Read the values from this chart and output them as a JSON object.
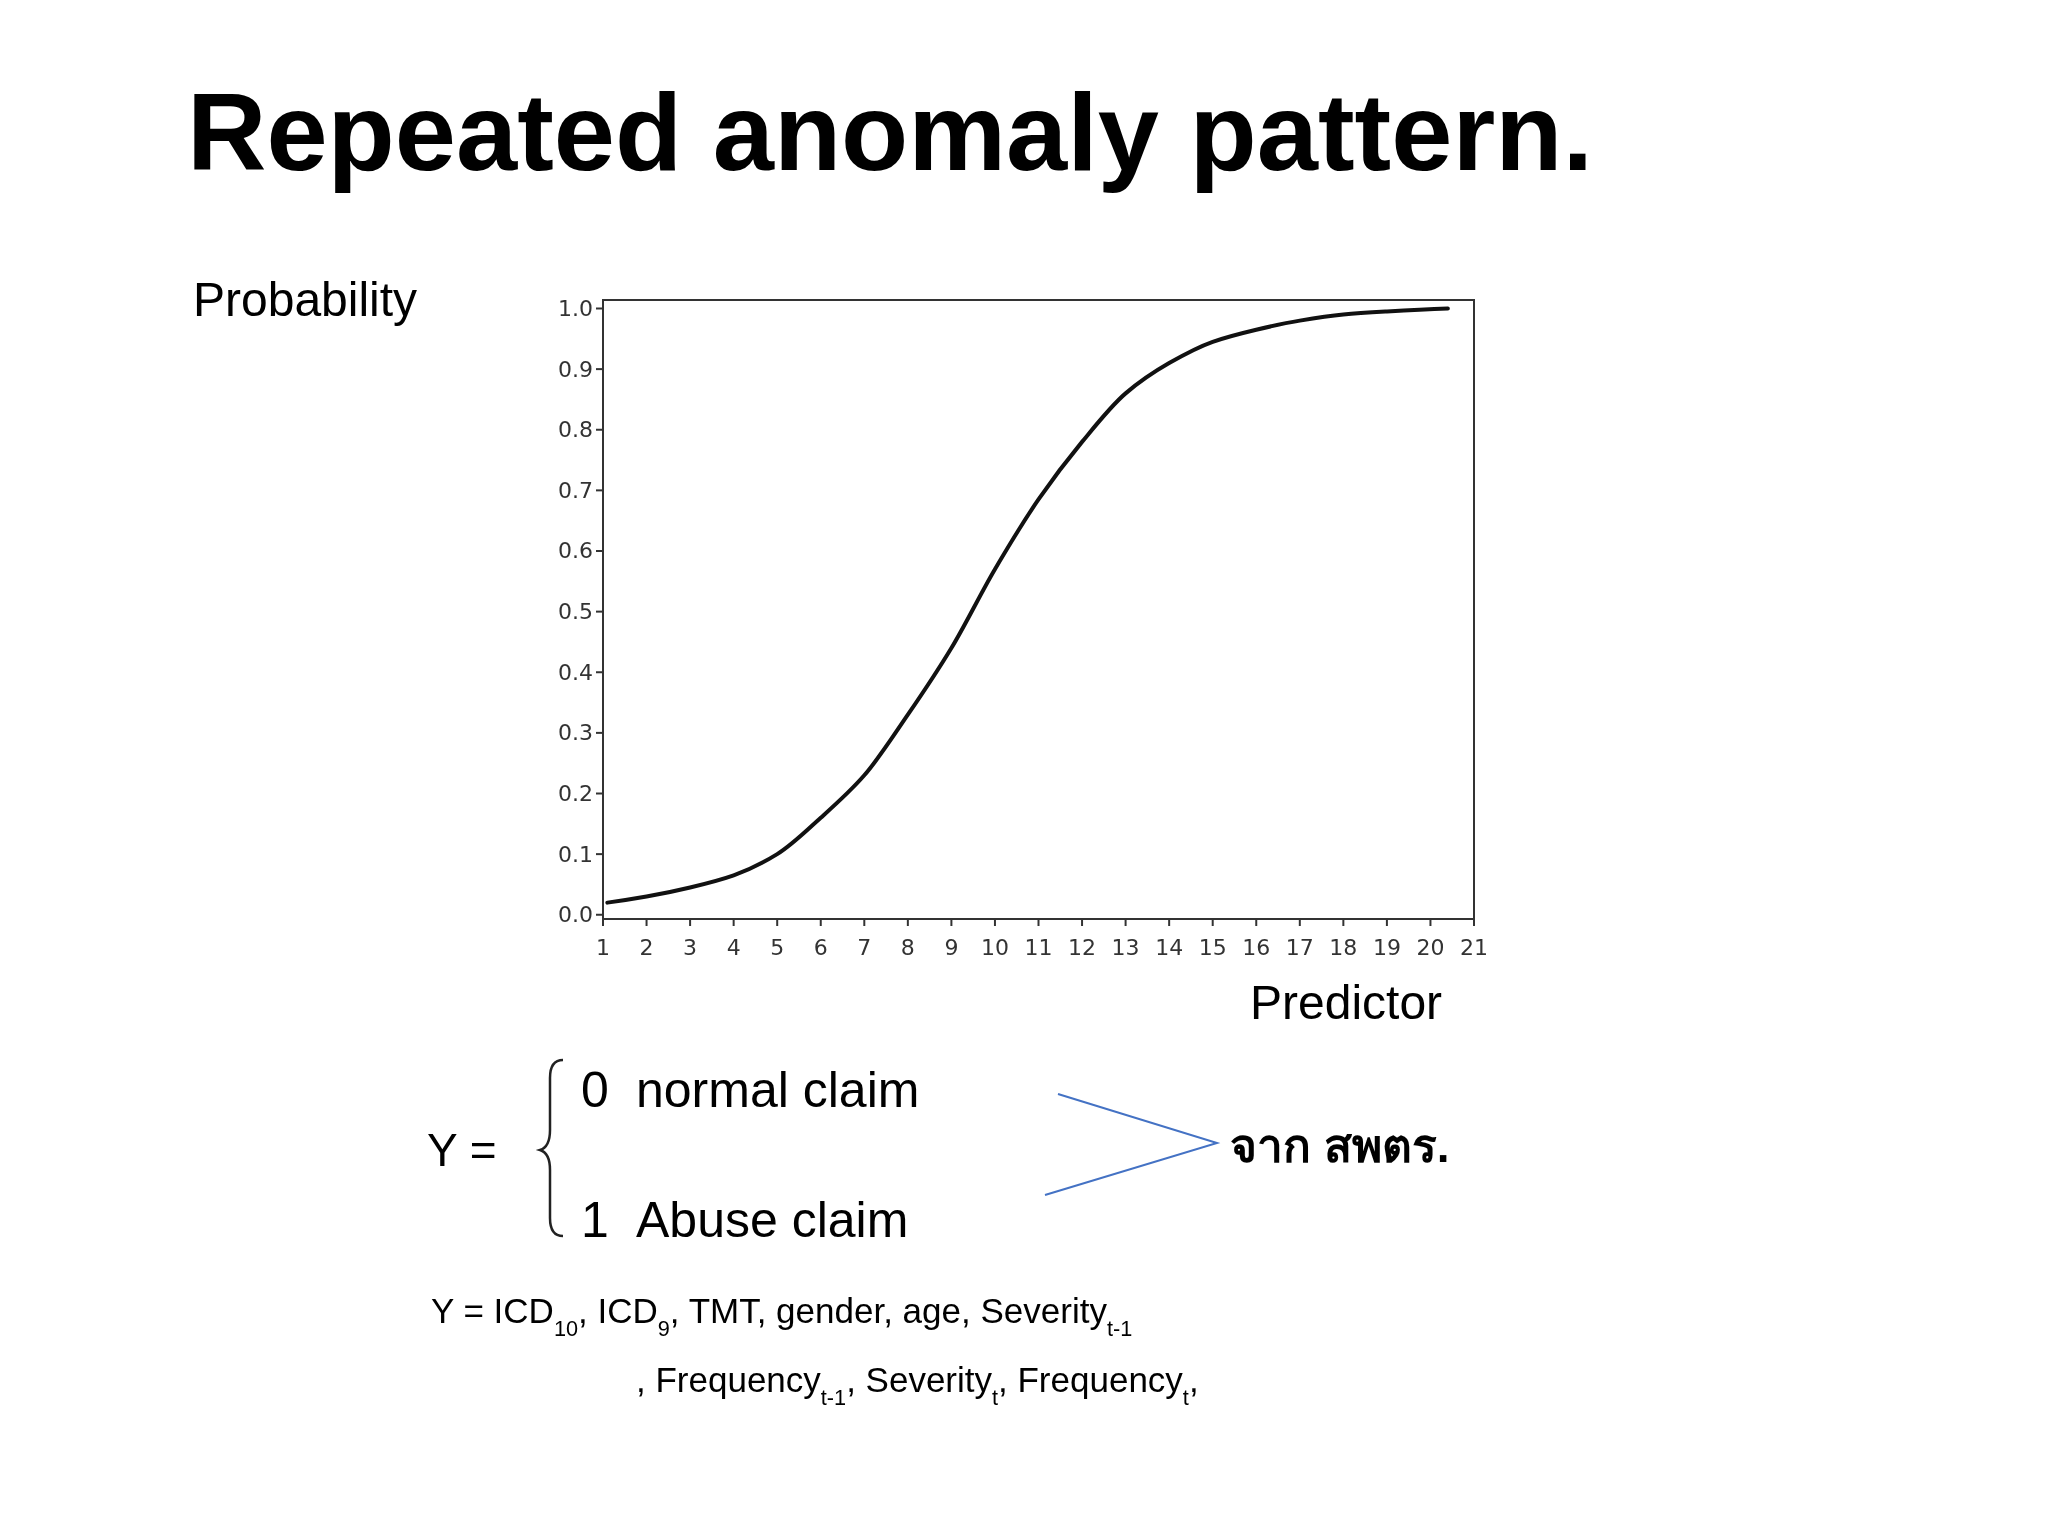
{
  "chart_data": {
    "type": "line",
    "title": "Repeated anomaly pattern.",
    "ylabel": "Probability",
    "xlabel": "Predictor",
    "x": [
      1.1,
      2,
      3,
      4,
      5,
      6,
      7,
      8,
      9,
      10,
      11,
      12,
      13,
      14,
      15,
      16,
      17,
      18,
      19,
      20.4
    ],
    "series": [
      {
        "color": "#111111",
        "values": [
          0.02,
          0.03,
          0.045,
          0.065,
          0.1,
          0.16,
          0.23,
          0.33,
          0.44,
          0.57,
          0.685,
          0.78,
          0.86,
          0.91,
          0.945,
          0.965,
          0.98,
          0.99,
          0.995,
          1.0
        ]
      }
    ],
    "xlim": [
      1,
      21
    ],
    "xticks": [
      1,
      2,
      3,
      4,
      5,
      6,
      7,
      8,
      9,
      10,
      11,
      12,
      13,
      14,
      15,
      16,
      17,
      18,
      19,
      20,
      21
    ],
    "ylim": [
      -0.007,
      1.014
    ],
    "yticks": [
      {
        "value": 0,
        "label": "0.0"
      },
      0.1,
      0.2,
      0.3,
      0.4,
      0.5,
      0.6,
      0.7,
      0.8,
      0.9,
      {
        "value": 1,
        "label": "1.0"
      }
    ],
    "annotations": [
      "Y =",
      "0",
      "normal claim",
      "1",
      "Abuse claim",
      "จาก สพตร.",
      "Y = ICD$_{10}$, ICD$_{9}$, TMT, gender, age, Severity$_{t-1}$",
      ", Frequency$_{t-1}$, Severity$_{t}$, Frequency$_{t}$,"
    ]
  }
}
